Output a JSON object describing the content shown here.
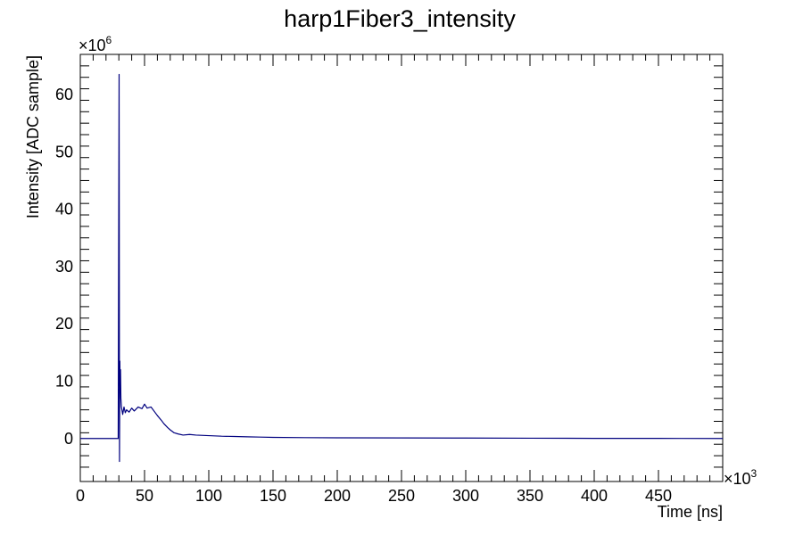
{
  "chart_data": {
    "type": "line",
    "title": "harp1Fiber3_intensity",
    "xlabel": "Time [ns]",
    "ylabel": "Intensity [ADC sample]",
    "x_multiplier": "×10",
    "x_multiplier_exp": "3",
    "y_multiplier": "×10",
    "y_multiplier_exp": "6",
    "xlim": [
      0,
      500
    ],
    "ylim": [
      -7.5,
      67
    ],
    "x_ticks": [
      0,
      50,
      100,
      150,
      200,
      250,
      300,
      350,
      400,
      450
    ],
    "x_tick_labels": [
      "0",
      "50",
      "100",
      "150",
      "200",
      "250",
      "300",
      "350",
      "400",
      "450"
    ],
    "y_ticks": [
      0,
      10,
      20,
      30,
      40,
      50,
      60
    ],
    "y_tick_labels": [
      "0",
      "10",
      "20",
      "30",
      "40",
      "50",
      "60"
    ],
    "grid": false,
    "series": [
      {
        "color": "#00007f",
        "x": [
          0,
          10,
          20,
          29.5,
          30.2,
          30.5,
          30.8,
          31,
          31.3,
          31.6,
          32,
          33,
          34,
          35,
          36,
          38,
          40,
          42,
          45,
          48,
          50,
          52,
          55,
          58,
          60,
          63,
          65,
          68,
          70,
          73,
          76,
          80,
          85,
          90,
          100,
          110,
          120,
          130,
          140,
          150,
          175,
          200,
          250,
          300,
          350,
          400,
          450,
          500
        ],
        "y": [
          0,
          0,
          0,
          0,
          63.5,
          -4.0,
          13.5,
          8.0,
          12.0,
          7.0,
          5.5,
          4.2,
          5.5,
          4.5,
          5.0,
          4.6,
          5.3,
          4.8,
          5.5,
          5.2,
          6.0,
          5.3,
          5.5,
          4.6,
          4.0,
          3.2,
          2.6,
          1.9,
          1.5,
          1.0,
          0.8,
          0.6,
          0.7,
          0.6,
          0.5,
          0.4,
          0.35,
          0.3,
          0.25,
          0.2,
          0.15,
          0.12,
          0.1,
          0.08,
          0.05,
          0.03,
          0.02,
          0.0
        ]
      }
    ]
  }
}
